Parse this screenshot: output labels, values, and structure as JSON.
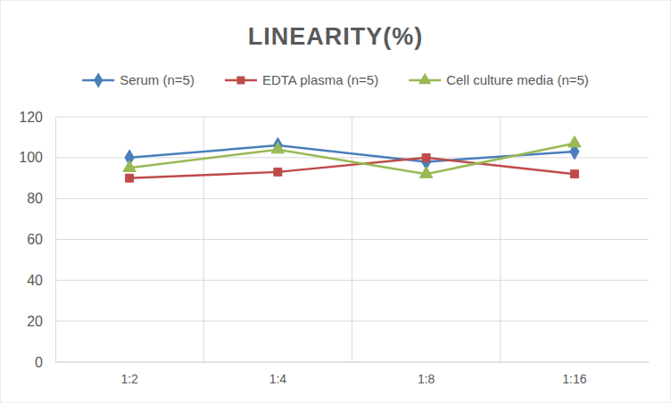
{
  "chart_data": {
    "type": "line",
    "title": "LINEARITY(%)",
    "categories": [
      "1:2",
      "1:4",
      "1:8",
      "1:16"
    ],
    "series": [
      {
        "name": "Serum (n=5)",
        "color": "#4a7ebb",
        "marker": "diamond",
        "values": [
          100,
          106,
          98,
          103
        ]
      },
      {
        "name": "EDTA plasma (n=5)",
        "color": "#be4b48",
        "marker": "square",
        "values": [
          90,
          93,
          100,
          92
        ]
      },
      {
        "name": "Cell culture media (n=5)",
        "color": "#98b954",
        "marker": "triangle",
        "values": [
          95,
          104,
          92,
          107
        ]
      }
    ],
    "ylim": [
      0,
      120
    ],
    "yticks": [
      0,
      20,
      40,
      60,
      80,
      100,
      120
    ],
    "grid": true,
    "legend": "top"
  }
}
